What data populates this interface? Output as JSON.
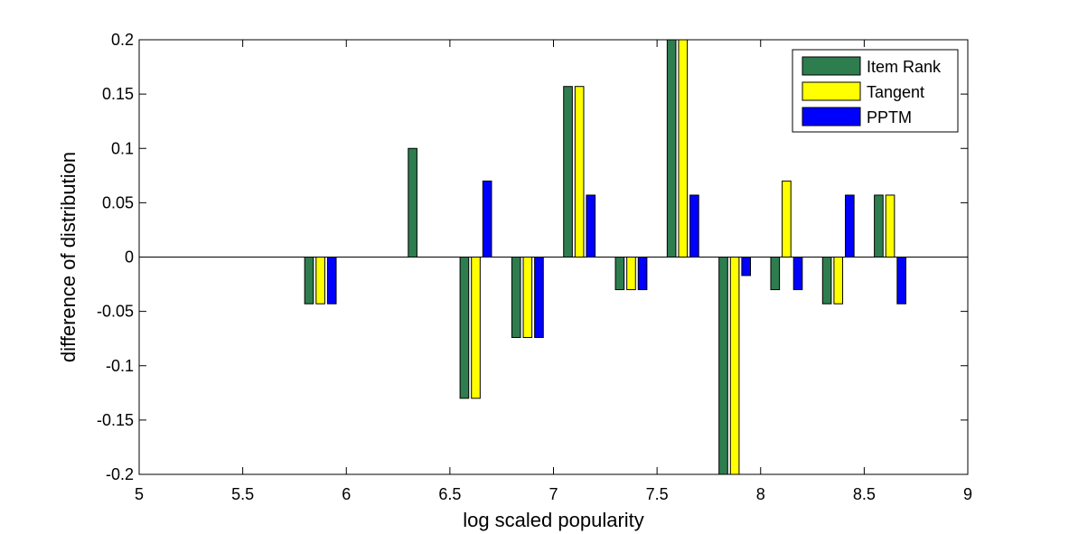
{
  "chart_data": {
    "type": "bar",
    "title": "",
    "xlabel": "log scaled popularity",
    "ylabel": "difference of distribution",
    "xlim": [
      5,
      9
    ],
    "ylim": [
      -0.2,
      0.2
    ],
    "xticks": [
      "5",
      "5.5",
      "6",
      "6.5",
      "7",
      "7.5",
      "8",
      "8.5",
      "9"
    ],
    "yticks": [
      "-0.2",
      "-0.15",
      "-0.1",
      "-0.05",
      "0",
      "0.05",
      "0.1",
      "0.15",
      "0.2"
    ],
    "grid": false,
    "legend_position": "top-right",
    "x": [
      5.875,
      6.375,
      6.625,
      6.875,
      7.125,
      7.375,
      7.625,
      7.875,
      8.125,
      8.375,
      8.625
    ],
    "series": [
      {
        "name": "Item Rank",
        "color": "#2e7d4f",
        "values": [
          -0.043,
          0.1,
          -0.13,
          -0.074,
          0.157,
          -0.03,
          0.2,
          -0.2,
          -0.03,
          -0.043,
          0.057
        ]
      },
      {
        "name": "Tangent",
        "color": "#ffff00",
        "values": [
          -0.043,
          0,
          -0.13,
          -0.074,
          0.157,
          -0.03,
          0.2,
          -0.2,
          0.07,
          -0.043,
          0.057
        ]
      },
      {
        "name": "PPTM",
        "color": "#0000ff",
        "values": [
          -0.043,
          0,
          0.07,
          -0.074,
          0.057,
          -0.03,
          0.057,
          -0.017,
          -0.03,
          0.057,
          -0.043
        ]
      }
    ]
  }
}
